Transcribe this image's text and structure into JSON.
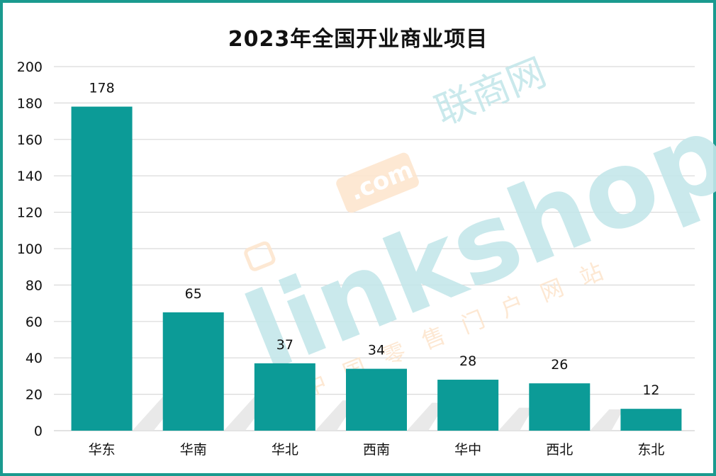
{
  "chart_data": {
    "type": "bar",
    "title": "2023年全国开业商业项目",
    "categories": [
      "华东",
      "华南",
      "华北",
      "西南",
      "华中",
      "西北",
      "东北"
    ],
    "values": [
      178,
      65,
      37,
      34,
      28,
      26,
      12
    ],
    "data_labels": [
      "178",
      "65",
      "37",
      "34",
      "28",
      "26",
      "12"
    ],
    "ylim": [
      0,
      200
    ],
    "yticks": [
      0,
      20,
      40,
      60,
      80,
      100,
      120,
      140,
      160,
      180,
      200
    ],
    "xlabel": "",
    "ylabel": "",
    "grid": true,
    "legend": "none",
    "bar_color": "#0c9b97",
    "grid_color": "#d9d9d9",
    "border_color": "#1a9a8f"
  },
  "watermark": {
    "brand_text": "linkshop",
    "domain_text": ".com",
    "site_name": "联商网",
    "tagline": "中国零售门户网站"
  }
}
